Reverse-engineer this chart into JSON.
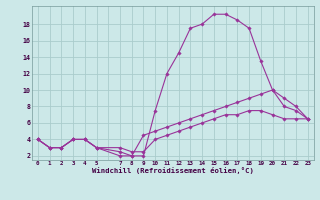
{
  "xlabel": "Windchill (Refroidissement éolien,°C)",
  "bg_color": "#cce8e8",
  "grid_color": "#aacccc",
  "line_color": "#993399",
  "line1": {
    "x": [
      0,
      1,
      2,
      3,
      4,
      5,
      7,
      8,
      9,
      10,
      11,
      12,
      13,
      14,
      15,
      16,
      17,
      18,
      19,
      20,
      21,
      22,
      23
    ],
    "y": [
      4,
      3,
      3,
      4,
      4,
      3,
      2,
      2,
      2,
      7.5,
      12,
      14.5,
      17.5,
      18,
      19.2,
      19.2,
      18.5,
      17.5,
      13.5,
      10,
      8,
      7.5,
      6.5
    ]
  },
  "line2": {
    "x": [
      0,
      1,
      2,
      3,
      4,
      5,
      7,
      8,
      9,
      10,
      11,
      12,
      13,
      14,
      15,
      16,
      17,
      18,
      19,
      20,
      21,
      22,
      23
    ],
    "y": [
      4,
      3,
      3,
      4,
      4,
      3,
      2.5,
      2,
      4.5,
      5,
      5.5,
      6,
      6.5,
      7,
      7.5,
      8,
      8.5,
      9,
      9.5,
      10,
      9,
      8,
      6.5
    ]
  },
  "line3": {
    "x": [
      0,
      1,
      2,
      3,
      4,
      5,
      7,
      8,
      9,
      10,
      11,
      12,
      13,
      14,
      15,
      16,
      17,
      18,
      19,
      20,
      21,
      22,
      23
    ],
    "y": [
      4,
      3,
      3,
      4,
      4,
      3,
      3,
      2.5,
      2.5,
      4,
      4.5,
      5,
      5.5,
      6,
      6.5,
      7,
      7,
      7.5,
      7.5,
      7,
      6.5,
      6.5,
      6.5
    ]
  },
  "xtick_labels": [
    "0",
    "1",
    "2",
    "3",
    "4",
    "5",
    "",
    "7",
    "8",
    "9",
    "10",
    "11",
    "12",
    "13",
    "14",
    "15",
    "16",
    "17",
    "18",
    "19",
    "20",
    "21",
    "22",
    "23"
  ],
  "ytick_vals": [
    2,
    4,
    6,
    8,
    10,
    12,
    14,
    16,
    18
  ],
  "xlim": [
    -0.5,
    23.5
  ],
  "ylim": [
    1.5,
    20.2
  ],
  "figsize": [
    3.2,
    2.0
  ],
  "dpi": 100
}
